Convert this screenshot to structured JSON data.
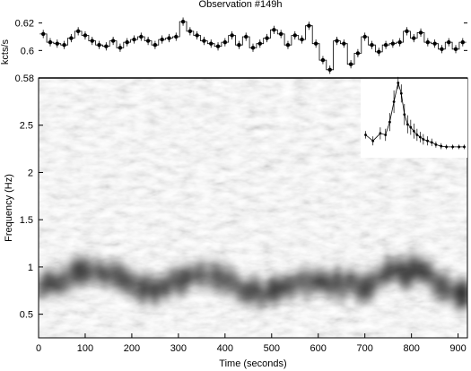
{
  "chart_data": [
    {
      "type": "line",
      "title": "Observation #149h",
      "xlabel": "",
      "ylabel": "kcts/s",
      "xlim": [
        0,
        920
      ],
      "ylim": [
        0.58,
        0.625
      ],
      "yticks": [
        0.58,
        0.6,
        0.62
      ],
      "ytick_labels": [
        "0.58",
        "0.6",
        "0.62"
      ],
      "grid": false,
      "series": [
        {
          "x": [
            10,
            25,
            40,
            55,
            70,
            85,
            100,
            115,
            130,
            145,
            160,
            175,
            190,
            205,
            220,
            235,
            250,
            265,
            280,
            295,
            310,
            325,
            340,
            355,
            370,
            385,
            400,
            415,
            430,
            445,
            460,
            475,
            490,
            505,
            520,
            535,
            550,
            565,
            580,
            595,
            610,
            625,
            640,
            655,
            670,
            685,
            700,
            715,
            730,
            745,
            760,
            775,
            790,
            805,
            820,
            835,
            850,
            865,
            880,
            895,
            910
          ],
          "y": [
            0.612,
            0.606,
            0.605,
            0.604,
            0.609,
            0.614,
            0.611,
            0.607,
            0.604,
            0.603,
            0.607,
            0.602,
            0.606,
            0.608,
            0.61,
            0.607,
            0.604,
            0.608,
            0.609,
            0.61,
            0.621,
            0.614,
            0.611,
            0.607,
            0.605,
            0.603,
            0.606,
            0.611,
            0.604,
            0.61,
            0.602,
            0.605,
            0.609,
            0.615,
            0.612,
            0.604,
            0.611,
            0.608,
            0.618,
            0.605,
            0.593,
            0.586,
            0.607,
            0.605,
            0.59,
            0.598,
            0.61,
            0.604,
            0.599,
            0.604,
            0.605,
            0.606,
            0.614,
            0.609,
            0.613,
            0.606,
            0.605,
            0.601,
            0.606,
            0.601,
            0.606
          ],
          "yerr": 0.003
        }
      ]
    },
    {
      "type": "heatmap",
      "title": "",
      "xlabel": "Time (seconds)",
      "ylabel": "Frequency (Hz)",
      "xlim": [
        0,
        920
      ],
      "ylim": [
        0.25,
        3.0
      ],
      "xticks": [
        0,
        100,
        200,
        300,
        400,
        500,
        600,
        700,
        800,
        900
      ],
      "xtick_labels": [
        "0",
        "100",
        "200",
        "300",
        "400",
        "500",
        "600",
        "700",
        "800",
        "900"
      ],
      "yticks": [
        0.5,
        1,
        1.5,
        2,
        2.5
      ],
      "ytick_labels": [
        "0.5",
        "1",
        "1.5",
        "2",
        "2.5"
      ],
      "colormap": "grayscale, dark = high power",
      "ridge_frequency": [
        {
          "t": 0,
          "f": 0.78
        },
        {
          "t": 50,
          "f": 0.85
        },
        {
          "t": 100,
          "f": 0.98
        },
        {
          "t": 150,
          "f": 0.9
        },
        {
          "t": 200,
          "f": 0.82
        },
        {
          "t": 250,
          "f": 0.78
        },
        {
          "t": 300,
          "f": 0.85
        },
        {
          "t": 350,
          "f": 0.92
        },
        {
          "t": 400,
          "f": 0.85
        },
        {
          "t": 450,
          "f": 0.75
        },
        {
          "t": 500,
          "f": 0.72
        },
        {
          "t": 550,
          "f": 0.8
        },
        {
          "t": 600,
          "f": 0.88
        },
        {
          "t": 650,
          "f": 0.82
        },
        {
          "t": 700,
          "f": 0.8
        },
        {
          "t": 750,
          "f": 0.92
        },
        {
          "t": 800,
          "f": 0.98
        },
        {
          "t": 850,
          "f": 0.85
        },
        {
          "t": 900,
          "f": 0.72
        },
        {
          "t": 920,
          "f": 0.7
        }
      ]
    },
    {
      "type": "scatter",
      "title": "",
      "description": "inset power spectrum with error bars",
      "xlim": [
        0,
        1
      ],
      "ylim": [
        0,
        1
      ],
      "series": [
        {
          "x": [
            0.03,
            0.1,
            0.17,
            0.22,
            0.26,
            0.3,
            0.34,
            0.37,
            0.4,
            0.43,
            0.46,
            0.49,
            0.52,
            0.55,
            0.58,
            0.62,
            0.66,
            0.7,
            0.75,
            0.8,
            0.86,
            0.92,
            0.97
          ],
          "y": [
            0.28,
            0.2,
            0.3,
            0.28,
            0.45,
            0.72,
            0.97,
            0.83,
            0.55,
            0.42,
            0.38,
            0.33,
            0.28,
            0.25,
            0.22,
            0.2,
            0.18,
            0.15,
            0.13,
            0.12,
            0.12,
            0.12,
            0.12
          ],
          "yerr": [
            0.05,
            0.06,
            0.08,
            0.08,
            0.12,
            0.15,
            0.08,
            0.12,
            0.14,
            0.12,
            0.1,
            0.1,
            0.08,
            0.07,
            0.07,
            0.06,
            0.05,
            0.04,
            0.04,
            0.03,
            0.03,
            0.03,
            0.03
          ]
        }
      ]
    }
  ]
}
